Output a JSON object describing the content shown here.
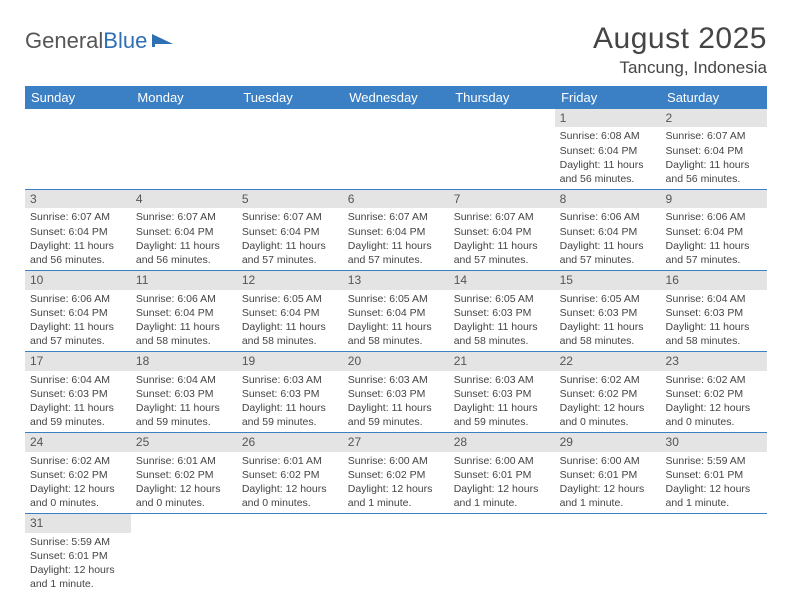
{
  "logo": {
    "part1": "General",
    "part2": "Blue"
  },
  "header": {
    "month_year": "August 2025",
    "location": "Tancung, Indonesia"
  },
  "colors": {
    "header_bg": "#3b7fc4",
    "header_text": "#ffffff",
    "daynum_bg": "#e4e4e4",
    "cell_border": "#3b7fc4",
    "text": "#444444"
  },
  "weekdays": [
    "Sunday",
    "Monday",
    "Tuesday",
    "Wednesday",
    "Thursday",
    "Friday",
    "Saturday"
  ],
  "weeks": [
    [
      {
        "n": "",
        "sr": "",
        "ss": "",
        "d1": "",
        "d2": ""
      },
      {
        "n": "",
        "sr": "",
        "ss": "",
        "d1": "",
        "d2": ""
      },
      {
        "n": "",
        "sr": "",
        "ss": "",
        "d1": "",
        "d2": ""
      },
      {
        "n": "",
        "sr": "",
        "ss": "",
        "d1": "",
        "d2": ""
      },
      {
        "n": "",
        "sr": "",
        "ss": "",
        "d1": "",
        "d2": ""
      },
      {
        "n": "1",
        "sr": "Sunrise: 6:08 AM",
        "ss": "Sunset: 6:04 PM",
        "d1": "Daylight: 11 hours",
        "d2": "and 56 minutes."
      },
      {
        "n": "2",
        "sr": "Sunrise: 6:07 AM",
        "ss": "Sunset: 6:04 PM",
        "d1": "Daylight: 11 hours",
        "d2": "and 56 minutes."
      }
    ],
    [
      {
        "n": "3",
        "sr": "Sunrise: 6:07 AM",
        "ss": "Sunset: 6:04 PM",
        "d1": "Daylight: 11 hours",
        "d2": "and 56 minutes."
      },
      {
        "n": "4",
        "sr": "Sunrise: 6:07 AM",
        "ss": "Sunset: 6:04 PM",
        "d1": "Daylight: 11 hours",
        "d2": "and 56 minutes."
      },
      {
        "n": "5",
        "sr": "Sunrise: 6:07 AM",
        "ss": "Sunset: 6:04 PM",
        "d1": "Daylight: 11 hours",
        "d2": "and 57 minutes."
      },
      {
        "n": "6",
        "sr": "Sunrise: 6:07 AM",
        "ss": "Sunset: 6:04 PM",
        "d1": "Daylight: 11 hours",
        "d2": "and 57 minutes."
      },
      {
        "n": "7",
        "sr": "Sunrise: 6:07 AM",
        "ss": "Sunset: 6:04 PM",
        "d1": "Daylight: 11 hours",
        "d2": "and 57 minutes."
      },
      {
        "n": "8",
        "sr": "Sunrise: 6:06 AM",
        "ss": "Sunset: 6:04 PM",
        "d1": "Daylight: 11 hours",
        "d2": "and 57 minutes."
      },
      {
        "n": "9",
        "sr": "Sunrise: 6:06 AM",
        "ss": "Sunset: 6:04 PM",
        "d1": "Daylight: 11 hours",
        "d2": "and 57 minutes."
      }
    ],
    [
      {
        "n": "10",
        "sr": "Sunrise: 6:06 AM",
        "ss": "Sunset: 6:04 PM",
        "d1": "Daylight: 11 hours",
        "d2": "and 57 minutes."
      },
      {
        "n": "11",
        "sr": "Sunrise: 6:06 AM",
        "ss": "Sunset: 6:04 PM",
        "d1": "Daylight: 11 hours",
        "d2": "and 58 minutes."
      },
      {
        "n": "12",
        "sr": "Sunrise: 6:05 AM",
        "ss": "Sunset: 6:04 PM",
        "d1": "Daylight: 11 hours",
        "d2": "and 58 minutes."
      },
      {
        "n": "13",
        "sr": "Sunrise: 6:05 AM",
        "ss": "Sunset: 6:04 PM",
        "d1": "Daylight: 11 hours",
        "d2": "and 58 minutes."
      },
      {
        "n": "14",
        "sr": "Sunrise: 6:05 AM",
        "ss": "Sunset: 6:03 PM",
        "d1": "Daylight: 11 hours",
        "d2": "and 58 minutes."
      },
      {
        "n": "15",
        "sr": "Sunrise: 6:05 AM",
        "ss": "Sunset: 6:03 PM",
        "d1": "Daylight: 11 hours",
        "d2": "and 58 minutes."
      },
      {
        "n": "16",
        "sr": "Sunrise: 6:04 AM",
        "ss": "Sunset: 6:03 PM",
        "d1": "Daylight: 11 hours",
        "d2": "and 58 minutes."
      }
    ],
    [
      {
        "n": "17",
        "sr": "Sunrise: 6:04 AM",
        "ss": "Sunset: 6:03 PM",
        "d1": "Daylight: 11 hours",
        "d2": "and 59 minutes."
      },
      {
        "n": "18",
        "sr": "Sunrise: 6:04 AM",
        "ss": "Sunset: 6:03 PM",
        "d1": "Daylight: 11 hours",
        "d2": "and 59 minutes."
      },
      {
        "n": "19",
        "sr": "Sunrise: 6:03 AM",
        "ss": "Sunset: 6:03 PM",
        "d1": "Daylight: 11 hours",
        "d2": "and 59 minutes."
      },
      {
        "n": "20",
        "sr": "Sunrise: 6:03 AM",
        "ss": "Sunset: 6:03 PM",
        "d1": "Daylight: 11 hours",
        "d2": "and 59 minutes."
      },
      {
        "n": "21",
        "sr": "Sunrise: 6:03 AM",
        "ss": "Sunset: 6:03 PM",
        "d1": "Daylight: 11 hours",
        "d2": "and 59 minutes."
      },
      {
        "n": "22",
        "sr": "Sunrise: 6:02 AM",
        "ss": "Sunset: 6:02 PM",
        "d1": "Daylight: 12 hours",
        "d2": "and 0 minutes."
      },
      {
        "n": "23",
        "sr": "Sunrise: 6:02 AM",
        "ss": "Sunset: 6:02 PM",
        "d1": "Daylight: 12 hours",
        "d2": "and 0 minutes."
      }
    ],
    [
      {
        "n": "24",
        "sr": "Sunrise: 6:02 AM",
        "ss": "Sunset: 6:02 PM",
        "d1": "Daylight: 12 hours",
        "d2": "and 0 minutes."
      },
      {
        "n": "25",
        "sr": "Sunrise: 6:01 AM",
        "ss": "Sunset: 6:02 PM",
        "d1": "Daylight: 12 hours",
        "d2": "and 0 minutes."
      },
      {
        "n": "26",
        "sr": "Sunrise: 6:01 AM",
        "ss": "Sunset: 6:02 PM",
        "d1": "Daylight: 12 hours",
        "d2": "and 0 minutes."
      },
      {
        "n": "27",
        "sr": "Sunrise: 6:00 AM",
        "ss": "Sunset: 6:02 PM",
        "d1": "Daylight: 12 hours",
        "d2": "and 1 minute."
      },
      {
        "n": "28",
        "sr": "Sunrise: 6:00 AM",
        "ss": "Sunset: 6:01 PM",
        "d1": "Daylight: 12 hours",
        "d2": "and 1 minute."
      },
      {
        "n": "29",
        "sr": "Sunrise: 6:00 AM",
        "ss": "Sunset: 6:01 PM",
        "d1": "Daylight: 12 hours",
        "d2": "and 1 minute."
      },
      {
        "n": "30",
        "sr": "Sunrise: 5:59 AM",
        "ss": "Sunset: 6:01 PM",
        "d1": "Daylight: 12 hours",
        "d2": "and 1 minute."
      }
    ],
    [
      {
        "n": "31",
        "sr": "Sunrise: 5:59 AM",
        "ss": "Sunset: 6:01 PM",
        "d1": "Daylight: 12 hours",
        "d2": "and 1 minute."
      },
      {
        "n": "",
        "sr": "",
        "ss": "",
        "d1": "",
        "d2": ""
      },
      {
        "n": "",
        "sr": "",
        "ss": "",
        "d1": "",
        "d2": ""
      },
      {
        "n": "",
        "sr": "",
        "ss": "",
        "d1": "",
        "d2": ""
      },
      {
        "n": "",
        "sr": "",
        "ss": "",
        "d1": "",
        "d2": ""
      },
      {
        "n": "",
        "sr": "",
        "ss": "",
        "d1": "",
        "d2": ""
      },
      {
        "n": "",
        "sr": "",
        "ss": "",
        "d1": "",
        "d2": ""
      }
    ]
  ]
}
